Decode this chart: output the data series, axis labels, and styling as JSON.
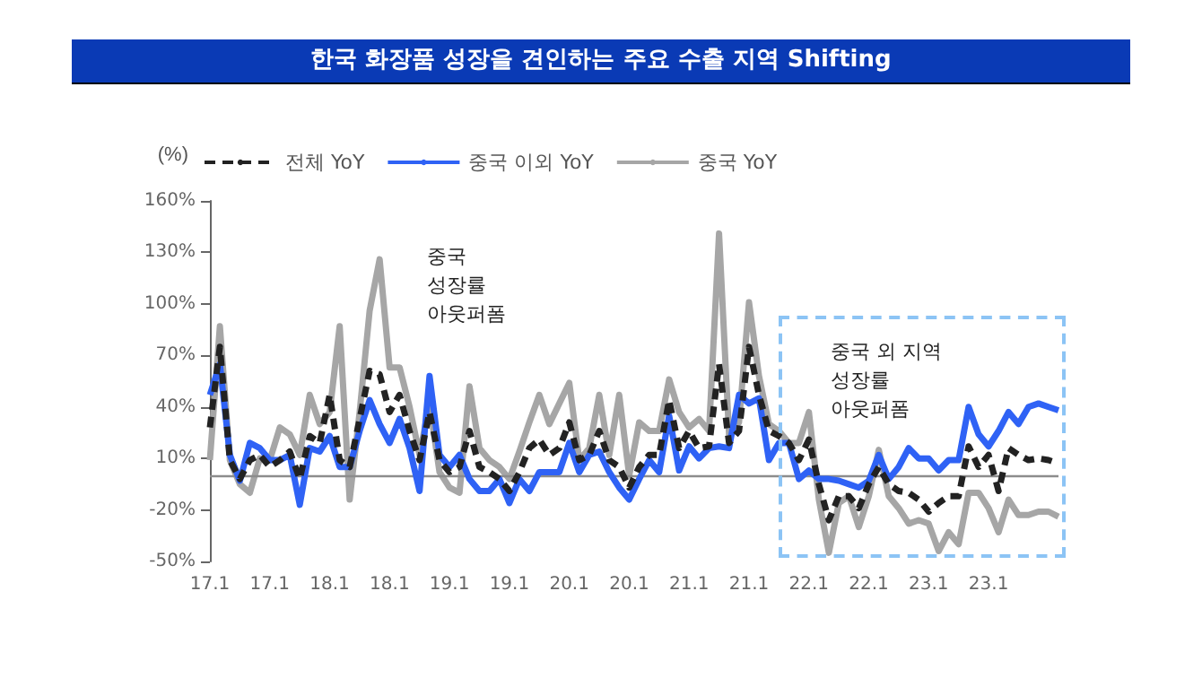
{
  "chart_data": {
    "type": "line",
    "title": "한국 화장품 성장을 견인하는 주요 수출 지역 Shifting",
    "ylabel": "(%)",
    "categories": [
      "17.1",
      null,
      null,
      null,
      null,
      null,
      "17.1",
      null,
      null,
      null,
      null,
      null,
      "18.1",
      null,
      null,
      null,
      null,
      null,
      "18.1",
      null,
      null,
      null,
      null,
      null,
      "19.1",
      null,
      null,
      null,
      null,
      null,
      "19.1",
      null,
      null,
      null,
      null,
      null,
      "20.1",
      null,
      null,
      null,
      null,
      null,
      "20.1",
      null,
      null,
      null,
      null,
      null,
      "21.1",
      null,
      null,
      null,
      null,
      null,
      "21.1",
      null,
      null,
      null,
      null,
      null,
      "22.1",
      null,
      null,
      null,
      null,
      null,
      "22.1",
      null,
      null,
      null,
      null,
      null,
      "23.1",
      null,
      null,
      null,
      null,
      null,
      "23.1",
      null,
      null,
      null,
      null,
      null,
      null,
      null
    ],
    "series": [
      {
        "name": "전체 YoY",
        "color": "#222222",
        "line_style": "dashed",
        "values": [
          28,
          75,
          9,
          -2,
          9,
          12,
          5,
          9,
          14,
          -2,
          23,
          19,
          47,
          9,
          5,
          33,
          61,
          59,
          37,
          47,
          26,
          9,
          37,
          9,
          2,
          5,
          26,
          5,
          2,
          -2,
          -9,
          2,
          16,
          21,
          12,
          16,
          31,
          9,
          12,
          26,
          9,
          5,
          -7,
          5,
          12,
          12,
          44,
          16,
          26,
          16,
          17,
          65,
          19,
          26,
          75,
          47,
          26,
          23,
          19,
          9,
          21,
          -5,
          -26,
          -12,
          -12,
          -19,
          -5,
          5,
          -5,
          -9,
          -10,
          -14,
          -21,
          -16,
          -12,
          -12,
          17,
          5,
          12,
          -9,
          16,
          12,
          9,
          10,
          9,
          7
        ]
      },
      {
        "name": "중국 이외 YoY",
        "color": "#2f62f5",
        "line_style": "solid",
        "values": [
          47,
          65,
          12,
          -3,
          19,
          16,
          9,
          9,
          12,
          -17,
          16,
          14,
          23,
          5,
          5,
          26,
          44,
          30,
          19,
          33,
          16,
          -9,
          58,
          12,
          5,
          12,
          -2,
          -9,
          -9,
          -2,
          -16,
          -2,
          -9,
          2,
          2,
          2,
          19,
          2,
          12,
          14,
          2,
          -7,
          -14,
          -2,
          9,
          2,
          35,
          3,
          17,
          10,
          16,
          17,
          16,
          47,
          42,
          45,
          9,
          19,
          19,
          -2,
          3,
          -2,
          -2,
          -3,
          -5,
          -7,
          -3,
          12,
          -2,
          5,
          16,
          10,
          10,
          3,
          9,
          9,
          40,
          24,
          17,
          26,
          37,
          30,
          40,
          42,
          40,
          38
        ]
      },
      {
        "name": "중국 YoY",
        "color": "#a6a6a6",
        "line_style": "solid",
        "values": [
          9,
          87,
          9,
          -5,
          -10,
          10,
          9,
          28,
          24,
          12,
          47,
          30,
          37,
          87,
          -14,
          37,
          96,
          126,
          63,
          63,
          40,
          12,
          42,
          2,
          -7,
          -10,
          52,
          16,
          9,
          5,
          -2,
          14,
          31,
          47,
          30,
          42,
          54,
          9,
          16,
          47,
          12,
          47,
          0,
          31,
          26,
          26,
          56,
          37,
          28,
          33,
          26,
          141,
          24,
          31,
          101,
          58,
          30,
          26,
          19,
          19,
          37,
          -14,
          -45,
          -16,
          -12,
          -30,
          -12,
          15,
          -12,
          -19,
          -28,
          -26,
          -28,
          -44,
          -33,
          -40,
          -10,
          -10,
          -19,
          -33,
          -14,
          -23,
          -23,
          -21,
          -21,
          -24
        ]
      }
    ],
    "ylim": [
      -50,
      160
    ],
    "yticks": [
      {
        "value": -50,
        "label": "-50%"
      },
      {
        "value": -20,
        "label": "-20%"
      },
      {
        "value": 10,
        "label": "10%"
      },
      {
        "value": 40,
        "label": "40%"
      },
      {
        "value": 70,
        "label": "70%"
      },
      {
        "value": 100,
        "label": "100%"
      },
      {
        "value": 130,
        "label": "130%"
      },
      {
        "value": 160,
        "label": "160%"
      }
    ],
    "ref_lines": [
      {
        "axis": "y",
        "value": 0,
        "color": "#8c8c8c",
        "line_style": "solid"
      }
    ],
    "annotations": [
      "중국\n성장률\n아웃퍼폼",
      "중국 외 지역\n성장률\n아웃퍼폼"
    ],
    "grid": false,
    "legend": "top left",
    "marker": "none"
  }
}
